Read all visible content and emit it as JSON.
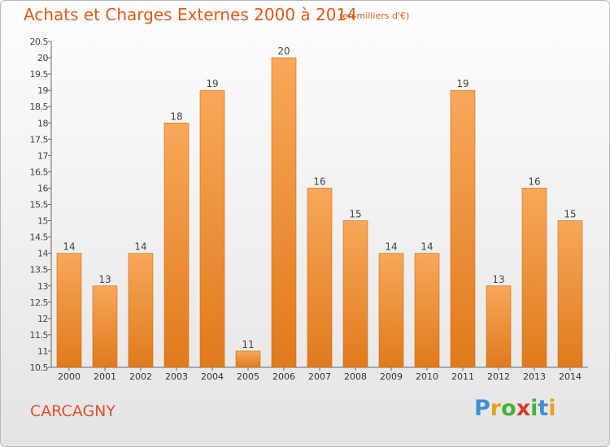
{
  "header": {
    "title": "Achats et Charges Externes 2000 à 2014",
    "subtitle": "(en milliers d'€)"
  },
  "footer": {
    "commune": "CARCAGNY",
    "logo_letters": [
      "P",
      "r",
      "o",
      "x",
      "i",
      "t",
      "i"
    ]
  },
  "colors": {
    "title": "#e05a1a",
    "bar_top": "#f7a85a",
    "bar_bottom": "#e07a1c",
    "bar_edge": "#d06a10",
    "logo": [
      "#3d8fd6",
      "#e8a21a",
      "#4bb03a",
      "#d73a2a",
      "#4bb03a",
      "#3d8fd6",
      "#e8a21a"
    ]
  },
  "chart_data": {
    "type": "bar",
    "title": "Achats et Charges Externes 2000 à 2014",
    "subtitle": "(en milliers d'€)",
    "categories": [
      "2000",
      "2001",
      "2002",
      "2003",
      "2004",
      "2005",
      "2006",
      "2007",
      "2008",
      "2009",
      "2010",
      "2011",
      "2012",
      "2013",
      "2014"
    ],
    "values": [
      14,
      13,
      14,
      18,
      19,
      11,
      20,
      16,
      15,
      14,
      14,
      19,
      13,
      16,
      15
    ],
    "ylim": [
      10.5,
      20.5
    ],
    "yticks": [
      "10.5",
      "11",
      "11.5",
      "12",
      "12.5",
      "13",
      "13.5",
      "14",
      "14.5",
      "15",
      "15.5",
      "16",
      "16.5",
      "17",
      "17.5",
      "18",
      "18.5",
      "19",
      "19.5",
      "20",
      "20.5"
    ],
    "grid": false,
    "legend": "none"
  }
}
